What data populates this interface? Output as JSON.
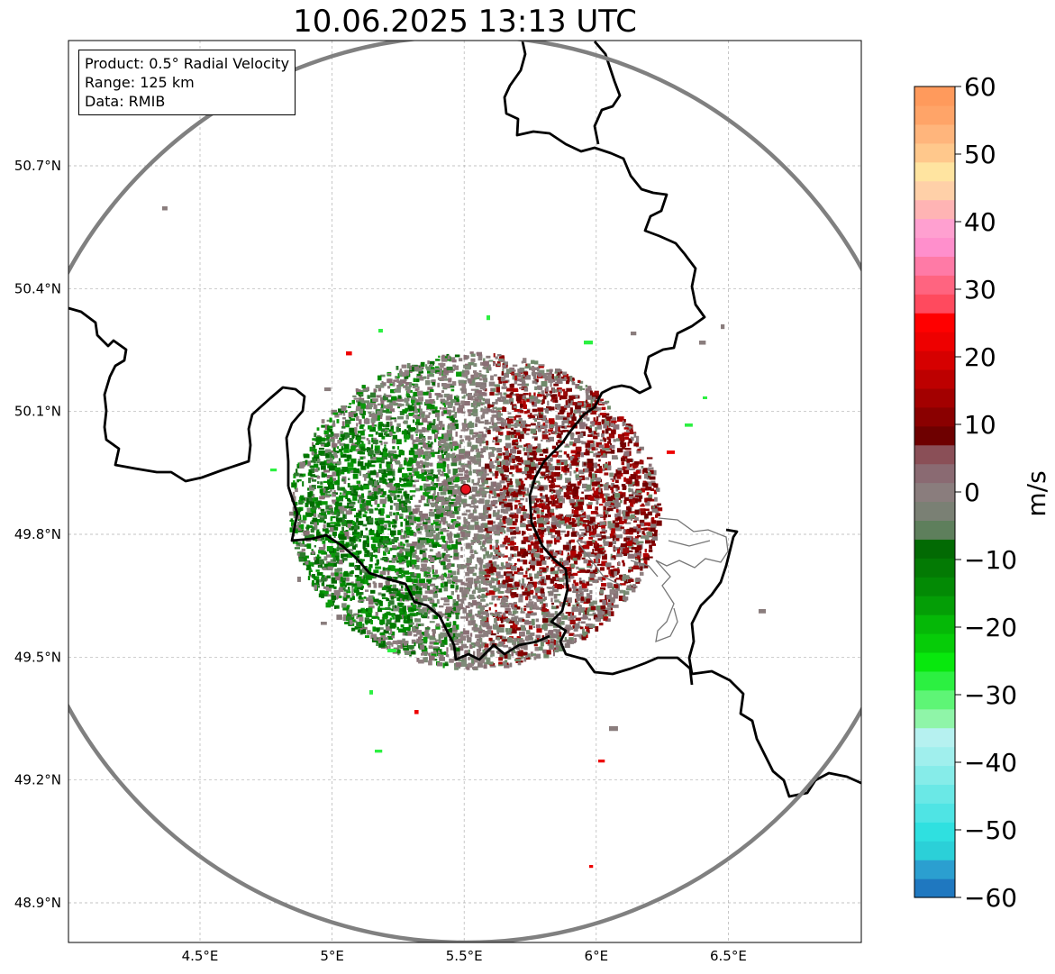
{
  "title": "10.06.2025 13:13 UTC",
  "info": {
    "product": "Product: 0.5° Radial Velocity",
    "range": "Range: 125 km",
    "data": "Data: RMIB"
  },
  "colorbar": {
    "unit": "m/s",
    "ticks": [
      "60",
      "50",
      "40",
      "30",
      "20",
      "10",
      "0",
      "−10",
      "−20",
      "−30",
      "−40",
      "−50",
      "−60"
    ],
    "min": -60,
    "max": 60,
    "colors": [
      "#1f78c0",
      "#2b9fd0",
      "#2bd0d8",
      "#2fe0e0",
      "#4fe4e4",
      "#6ae8e6",
      "#86ece9",
      "#a0efed",
      "#b6f1f0",
      "#8ff5a8",
      "#5ef576",
      "#2cf041",
      "#08e80d",
      "#06cc08",
      "#05b807",
      "#049e06",
      "#038a05",
      "#037a04",
      "#026a03",
      "#5e7f5c",
      "#7a8074",
      "#8a7d7d",
      "#8a6a72",
      "#8a4f57",
      "#6e0000",
      "#8a0000",
      "#a30000",
      "#bd0000",
      "#d60000",
      "#ee0000",
      "#ff0000",
      "#ff4a5e",
      "#ff6480",
      "#ff7aa6",
      "#ff8fcc",
      "#ffa0d0",
      "#ffb4b4",
      "#ffd0a8",
      "#ffe4a0",
      "#ffc88c",
      "#ffb57c",
      "#ffa468",
      "#ff9a5c"
    ]
  },
  "axes": {
    "lat_ticks": [
      "50.7°N",
      "50.4°N",
      "50.1°N",
      "49.8°N",
      "49.5°N",
      "49.2°N",
      "48.9°N"
    ],
    "lon_ticks": [
      "4.5°E",
      "5°E",
      "5.5°E",
      "6°E",
      "6.5°E"
    ],
    "lat_values": [
      50.7,
      50.4,
      50.1,
      49.8,
      49.5,
      49.2,
      48.9
    ],
    "lon_values": [
      4.5,
      5.0,
      5.5,
      6.0,
      6.5
    ],
    "grid": true
  },
  "radar": {
    "site_lon": 5.505,
    "site_lat": 49.914,
    "range_km": 125
  },
  "colors": {
    "approach": "#007a00",
    "recede": "#7a0000",
    "near_zero": "#8a7d7d",
    "site_marker": "#e8101c",
    "range_ring": "#808080",
    "border": "#000000"
  }
}
